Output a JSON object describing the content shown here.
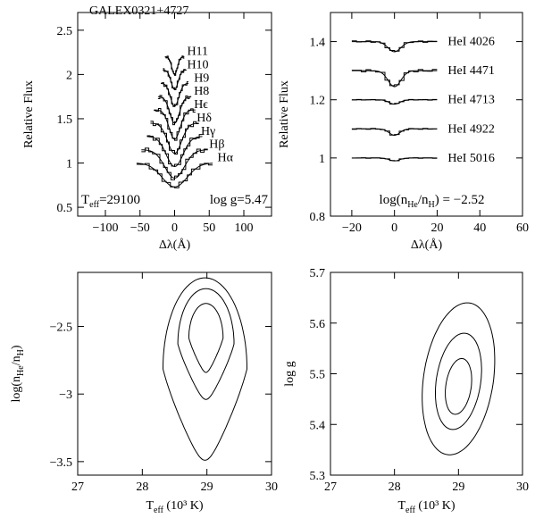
{
  "figure_title": "GALEX0321+4727",
  "chart_data": [
    {
      "type": "line",
      "id": "balmer",
      "xlabel": "Δλ(Å)",
      "ylabel": "Relative Flux",
      "xlim": [
        -140,
        140
      ],
      "ylim": [
        0.4,
        2.7
      ],
      "xticks": [
        -100,
        -50,
        0,
        50,
        100
      ],
      "yticks": [
        0.5,
        1,
        1.5,
        2,
        2.5
      ],
      "series": [
        {
          "name": "Hα",
          "offset": 1.0,
          "depth": 0.27,
          "width": 18,
          "halfrange": 55,
          "label_dx": 62
        },
        {
          "name": "Hβ",
          "offset": 1.15,
          "depth": 0.32,
          "width": 14,
          "halfrange": 48,
          "label_dx": 50
        },
        {
          "name": "Hγ",
          "offset": 1.3,
          "depth": 0.34,
          "width": 12,
          "halfrange": 40,
          "label_dx": 38
        },
        {
          "name": "Hδ",
          "offset": 1.45,
          "depth": 0.34,
          "width": 10,
          "halfrange": 35,
          "label_dx": 32
        },
        {
          "name": "Hϵ",
          "offset": 1.6,
          "depth": 0.33,
          "width": 8,
          "halfrange": 30,
          "label_dx": 28
        },
        {
          "name": "H8",
          "offset": 1.75,
          "depth": 0.3,
          "width": 7,
          "halfrange": 24,
          "label_dx": 28
        },
        {
          "name": "H9",
          "offset": 1.9,
          "depth": 0.26,
          "width": 6,
          "halfrange": 20,
          "label_dx": 28
        },
        {
          "name": "H10",
          "offset": 2.05,
          "depth": 0.22,
          "width": 5,
          "halfrange": 17,
          "label_dx": 18
        },
        {
          "name": "H11",
          "offset": 2.2,
          "depth": 0.2,
          "width": 4,
          "halfrange": 14,
          "label_dx": 18
        }
      ],
      "annotation": {
        "teff_label": "T",
        "teff_sub": "eff",
        "teff_value": "=29100",
        "logg": "log g=5.47"
      }
    },
    {
      "type": "line",
      "id": "helium",
      "xlabel": "Δλ(Å)",
      "ylabel": "Relative Flux",
      "xlim": [
        -30,
        60
      ],
      "ylim": [
        0.8,
        1.5
      ],
      "xticks": [
        -20,
        0,
        20,
        40,
        60
      ],
      "yticks": [
        0.8,
        1,
        1.2,
        1.4
      ],
      "series": [
        {
          "name": "HeI 4026",
          "offset": 1.4,
          "depth": 0.035,
          "width": 3.0
        },
        {
          "name": "HeI 4471",
          "offset": 1.3,
          "depth": 0.055,
          "width": 3.0
        },
        {
          "name": "HeI 4713",
          "offset": 1.2,
          "depth": 0.015,
          "width": 2.5
        },
        {
          "name": "HeI 4922",
          "offset": 1.1,
          "depth": 0.022,
          "width": 2.5
        },
        {
          "name": "HeI 5016",
          "offset": 1.0,
          "depth": 0.01,
          "width": 2.5
        }
      ],
      "annotation": {
        "prefix": "log(n",
        "sub1": "He",
        "mid": "/n",
        "sub2": "H",
        "suffix": ") = −2.52"
      }
    },
    {
      "type": "line",
      "id": "contour-he",
      "xlabel": "T",
      "xlabel_sub": "eff",
      "xlabel_unit": " (10³ K)",
      "ylabel": "log(n",
      "ylabel_sub1": "He",
      "ylabel_mid": "/n",
      "ylabel_sub2": "H",
      "ylabel_suffix": ")",
      "xlim": [
        27,
        30
      ],
      "ylim": [
        -3.6,
        -2.1
      ],
      "xticks": [
        27,
        28,
        29,
        30
      ],
      "yticks": [
        -3.5,
        -3.0,
        -2.5
      ],
      "center": [
        29.0,
        -2.55
      ],
      "contours": [
        {
          "x_min": 28.72,
          "x_max": 29.25,
          "y_min": -2.84,
          "y_max": -2.33
        },
        {
          "x_min": 28.55,
          "x_max": 29.42,
          "y_min": -3.04,
          "y_max": -2.22
        },
        {
          "x_min": 28.32,
          "x_max": 29.62,
          "y_min": -3.49,
          "y_max": -2.14
        }
      ]
    },
    {
      "type": "line",
      "id": "contour-logg",
      "xlabel": "T",
      "xlabel_sub": "eff",
      "xlabel_unit": " (10³ K)",
      "ylabel": "log g",
      "xlim": [
        27,
        30
      ],
      "ylim": [
        5.3,
        5.7
      ],
      "xticks": [
        27,
        28,
        29,
        30
      ],
      "yticks": [
        5.3,
        5.4,
        5.5,
        5.6,
        5.7
      ],
      "center": [
        29.0,
        5.475
      ],
      "contours": [
        {
          "x_min": 28.8,
          "x_max": 29.2,
          "y_min": 5.42,
          "y_max": 5.53
        },
        {
          "x_min": 28.65,
          "x_max": 29.35,
          "y_min": 5.39,
          "y_max": 5.58
        },
        {
          "x_min": 28.45,
          "x_max": 29.55,
          "y_min": 5.34,
          "y_max": 5.64
        }
      ]
    }
  ]
}
